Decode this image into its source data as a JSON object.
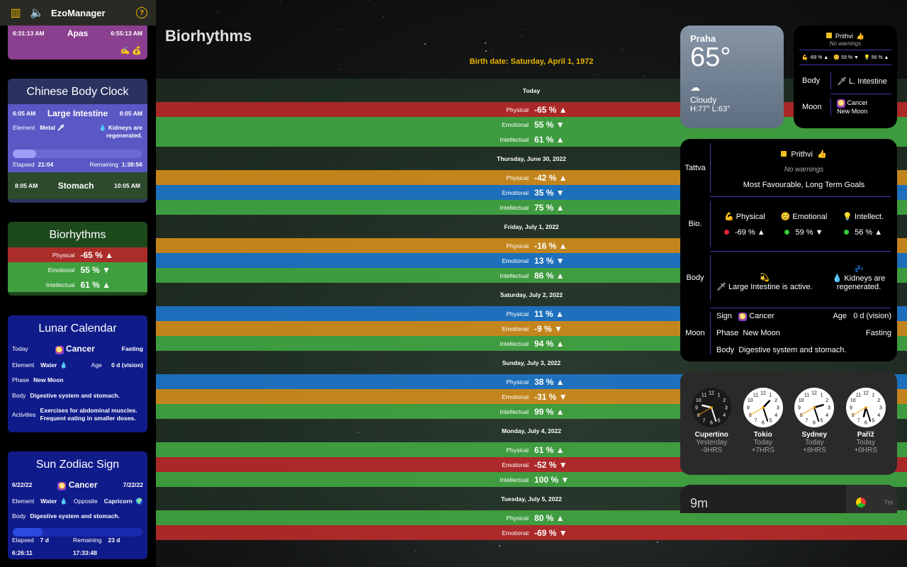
{
  "app": {
    "title": "EzoManager"
  },
  "tattva_card": {
    "start": "6:31:13 AM",
    "name": "Apas",
    "end": "6:55:13 AM"
  },
  "chinese_body_clock": {
    "title": "Chinese Body Clock",
    "active": {
      "start": "6:05 AM",
      "organ": "Large Intestine",
      "end": "8:05 AM",
      "element_label": "Element",
      "element": "Metal",
      "note": "Kidneys are regenerated.",
      "elapsed_label": "Elapsed",
      "elapsed": "21:04",
      "remaining_label": "Remaining",
      "remaining": "1:38:56",
      "progress": 0.18
    },
    "next": {
      "start": "8:05 AM",
      "organ": "Stomach",
      "end": "10:05 AM"
    }
  },
  "bio_card": {
    "title": "Biorhythms",
    "rows": [
      {
        "label": "Physical",
        "value": "-65 % ▲"
      },
      {
        "label": "Emotional",
        "value": "55 % ▼"
      },
      {
        "label": "Intellectual",
        "value": "61 % ▲"
      }
    ]
  },
  "lunar_card": {
    "title": "Lunar Calendar",
    "today_label": "Today",
    "sign": "Cancer",
    "fasting": "Fasting",
    "element_label": "Element",
    "element": "Water",
    "age_label": "Age",
    "age": "0 d (vision)",
    "phase_label": "Phase",
    "phase": "New Moon",
    "body_label": "Body",
    "body": "Digestive system and stomach.",
    "activities_label": "Activities",
    "activities1": "Exercises for abdominal muscles.",
    "activities2": "Frequent eating in smaller doses."
  },
  "zodiac_card": {
    "title": "Sun Zodiac Sign",
    "start": "6/22/22",
    "sign": "Cancer",
    "end": "7/22/22",
    "element_label": "Element",
    "element": "Water",
    "opposite_label": "Opposite",
    "opposite": "Capricorn",
    "body_label": "Body",
    "body": "Digestive system and stomach.",
    "elapsed_label": "Elapsed",
    "elapsed": "7 d  6:26:11",
    "remaining_label": "Remaining",
    "remaining": "23 d  17:33:48",
    "progress": 0.23
  },
  "main": {
    "title": "Biorhythms",
    "birth_date": "Birth date: Saturday, April 1, 1972",
    "days": [
      {
        "label": "Today",
        "rows": [
          {
            "label": "Physical",
            "value": "-65 % ▲",
            "color": "red"
          },
          {
            "label": "Emotional",
            "value": "55 % ▼",
            "color": "green"
          },
          {
            "label": "Intellectual",
            "value": "61 % ▲",
            "color": "green"
          }
        ]
      },
      {
        "label": "Thursday, June 30, 2022",
        "rows": [
          {
            "label": "Physical",
            "value": "-42 % ▲",
            "color": "orange"
          },
          {
            "label": "Emotional",
            "value": "35 % ▼",
            "color": "blue"
          },
          {
            "label": "Intellectual",
            "value": "75 % ▲",
            "color": "green"
          }
        ]
      },
      {
        "label": "Friday, July 1, 2022",
        "rows": [
          {
            "label": "Physical",
            "value": "-16 % ▲",
            "color": "orange"
          },
          {
            "label": "Emotional",
            "value": "13 % ▼",
            "color": "blue"
          },
          {
            "label": "Intellectual",
            "value": "86 % ▲",
            "color": "green"
          }
        ]
      },
      {
        "label": "Saturday, July 2, 2022",
        "rows": [
          {
            "label": "Physical",
            "value": "11 % ▲",
            "color": "blue"
          },
          {
            "label": "Emotional",
            "value": "-9 % ▼",
            "color": "orange"
          },
          {
            "label": "Intellectual",
            "value": "94 % ▲",
            "color": "green"
          }
        ]
      },
      {
        "label": "Sunday, July 3, 2022",
        "rows": [
          {
            "label": "Physical",
            "value": "38 % ▲",
            "color": "blue"
          },
          {
            "label": "Emotional",
            "value": "-31 % ▼",
            "color": "orange"
          },
          {
            "label": "Intellectual",
            "value": "99 % ▲",
            "color": "green"
          }
        ]
      },
      {
        "label": "Monday, July 4, 2022",
        "rows": [
          {
            "label": "Physical",
            "value": "61 % ▲",
            "color": "green"
          },
          {
            "label": "Emotional",
            "value": "-52 % ▼",
            "color": "red"
          },
          {
            "label": "Intellectual",
            "value": "100 % ▼",
            "color": "green"
          }
        ]
      },
      {
        "label": "Tuesday, July 5, 2022",
        "rows": [
          {
            "label": "Physical",
            "value": "80 % ▲",
            "color": "green"
          },
          {
            "label": "Emotional",
            "value": "-69 % ▼",
            "color": "red"
          }
        ]
      }
    ]
  },
  "weather_widget": {
    "city": "Praha",
    "temp": "65°",
    "condition": "Cloudy",
    "hilo": "H:77° L:63°"
  },
  "small_widget": {
    "tattva": "Prithvi",
    "warnings": "No warnings",
    "bio": [
      "-69 % ▲",
      "59 % ▼",
      "56 % ▲"
    ],
    "body_label": "Body",
    "body": "L. Intestine",
    "moon_label": "Moon",
    "moon_sign": "Cancer",
    "moon_phase": "New Moon"
  },
  "detail_widget": {
    "tattva_label": "Tattva",
    "tattva": "Prithvi",
    "warnings": "No warnings",
    "tattva_desc": "Most Favourable, Long Term Goals",
    "bio_label": "Bio.",
    "physical_label": "Physical",
    "emotional_label": "Emotional",
    "intellect_label": "Intellect.",
    "physical": "-69 % ▲",
    "emotional": "59 % ▼",
    "intellect": "56 % ▲",
    "body_label": "Body",
    "body_active": "Large Intestine is active.",
    "body_regen": "Kidneys are regenerated.",
    "moon_label": "Moon",
    "sign_label": "Sign",
    "sign": "Cancer",
    "age_label": "Age",
    "age": "0 d (vision)",
    "phase_label": "Phase",
    "phase": "New Moon",
    "fasting": "Fasting",
    "mbody_label": "Body",
    "mbody": "Digestive system and stomach."
  },
  "clocks": [
    {
      "city": "Cupertino",
      "day": "Yesterday",
      "offset": "-9HRS",
      "h": 21,
      "m": 27,
      "s": 40
    },
    {
      "city": "Tokio",
      "day": "Today",
      "offset": "+7HRS",
      "h": 13,
      "m": 27,
      "s": 40
    },
    {
      "city": "Sydney",
      "day": "Today",
      "offset": "+8HRS",
      "h": 14,
      "m": 27,
      "s": 40
    },
    {
      "city": "Paříž",
      "day": "Today",
      "offset": "+0HRS",
      "h": 6,
      "m": 27,
      "s": 40
    }
  ],
  "timer_widget": {
    "value": "9m",
    "small": "7m"
  }
}
